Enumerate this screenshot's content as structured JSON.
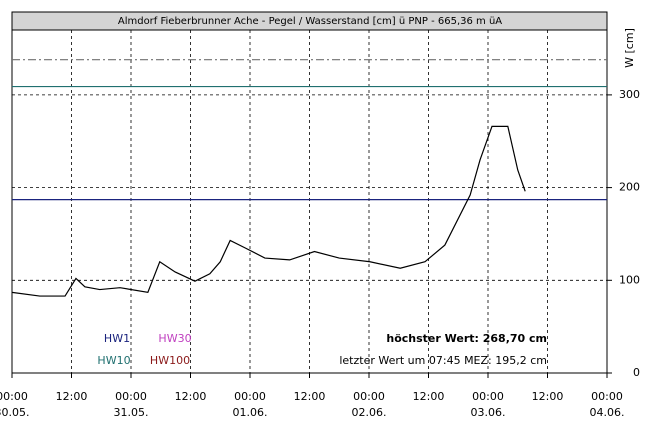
{
  "chart_data": {
    "type": "line",
    "title": "Almdorf Fieberbrunner Ache - Pegel / Wasserstand [cm] ü PNP - 665,36 m üA",
    "y_label": "W [cm]",
    "x": [
      0,
      5.6,
      10.7,
      12.9,
      14.7,
      17.7,
      21.8,
      27.4,
      29.8,
      32.9,
      36.9,
      39.9,
      42,
      44,
      47,
      51,
      56,
      61,
      66,
      72.2,
      78.3,
      83.3,
      87.3,
      92.4,
      94.4,
      96.8,
      98.4,
      100,
      102,
      103.5
    ],
    "series": [
      {
        "name": "W",
        "color": "#000000",
        "values": [
          87,
          83,
          83,
          102,
          93,
          90,
          92,
          87,
          120,
          109,
          99,
          107,
          120,
          143,
          135,
          124,
          122,
          131,
          124,
          120,
          113,
          120,
          138,
          192,
          230,
          266,
          266,
          266,
          219,
          196
        ]
      }
    ],
    "xlim": [
      0,
      120
    ],
    "xticks": [
      {
        "value": 0,
        "label": "00:00",
        "date": "30.05."
      },
      {
        "value": 12,
        "label": "12:00"
      },
      {
        "value": 24,
        "label": "00:00",
        "date": "31.05."
      },
      {
        "value": 36,
        "label": "12:00"
      },
      {
        "value": 48,
        "label": "00:00",
        "date": "01.06."
      },
      {
        "value": 60,
        "label": "12:00"
      },
      {
        "value": 72,
        "label": "00:00",
        "date": "02.06."
      },
      {
        "value": 84,
        "label": "12:00"
      },
      {
        "value": 96,
        "label": "00:00",
        "date": "03.06."
      },
      {
        "value": 108,
        "label": "12:00"
      },
      {
        "value": 120,
        "label": "00:00",
        "date": "04.06."
      }
    ],
    "ylim": [
      0,
      370
    ],
    "yticks": [
      0,
      100,
      200,
      300
    ],
    "grid": true,
    "thresholds": [
      {
        "name": "HW1",
        "color": "#1a237e",
        "value": 187,
        "style": "solid"
      },
      {
        "name": "HW30",
        "color": "#c040c0",
        "value": 338,
        "style": "dashdot",
        "line_color": "#707070"
      },
      {
        "name": "HW10",
        "color": "#207070",
        "value": 309,
        "style": "solid"
      },
      {
        "name": "HW100",
        "color": "#8b1a1a",
        "value": null
      }
    ],
    "annotations": [
      "höchster Wert: 268,70 cm",
      "letzter Wert um 07:45 MEZ: 195,2 cm"
    ]
  }
}
